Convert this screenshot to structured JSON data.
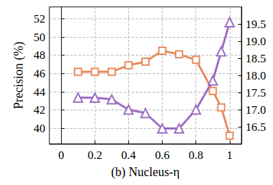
{
  "chart_data": {
    "type": "line",
    "x_label": "(b) Nucleus-η",
    "y_label": "Precision (%)",
    "x": [
      0.1,
      0.2,
      0.3,
      0.4,
      0.5,
      0.6,
      0.7,
      0.8,
      0.9,
      0.95,
      1.0
    ],
    "series": [
      {
        "color": "#e8895a",
        "marker": "square",
        "values": [
          46.2,
          46.2,
          46.2,
          46.9,
          47.3,
          48.5,
          48.1,
          47.5,
          44.1,
          42.3,
          39.2
        ]
      },
      {
        "color": "#9b6bc4",
        "marker": "triangle",
        "axis": "y2",
        "values": [
          17.35,
          17.35,
          17.3,
          17.0,
          16.9,
          16.45,
          16.45,
          17.0,
          17.85,
          18.7,
          19.55
        ]
      }
    ],
    "xlim": [
      -0.07,
      1.07
    ],
    "xticks": [
      0,
      0.2,
      0.4,
      0.6,
      0.8,
      1
    ],
    "ylim": [
      38.3,
      53.3
    ],
    "yticks": [
      40,
      42,
      44,
      46,
      48,
      50,
      52
    ],
    "y2lim": [
      16.0,
      20.0
    ],
    "y2ticks": [
      16.5,
      {
        "value": 17,
        "label": "17.0"
      },
      17.5,
      {
        "value": 18,
        "label": "18.0"
      },
      18.5,
      {
        "value": 19,
        "label": "19.0"
      },
      19.5
    ],
    "grid": true
  }
}
